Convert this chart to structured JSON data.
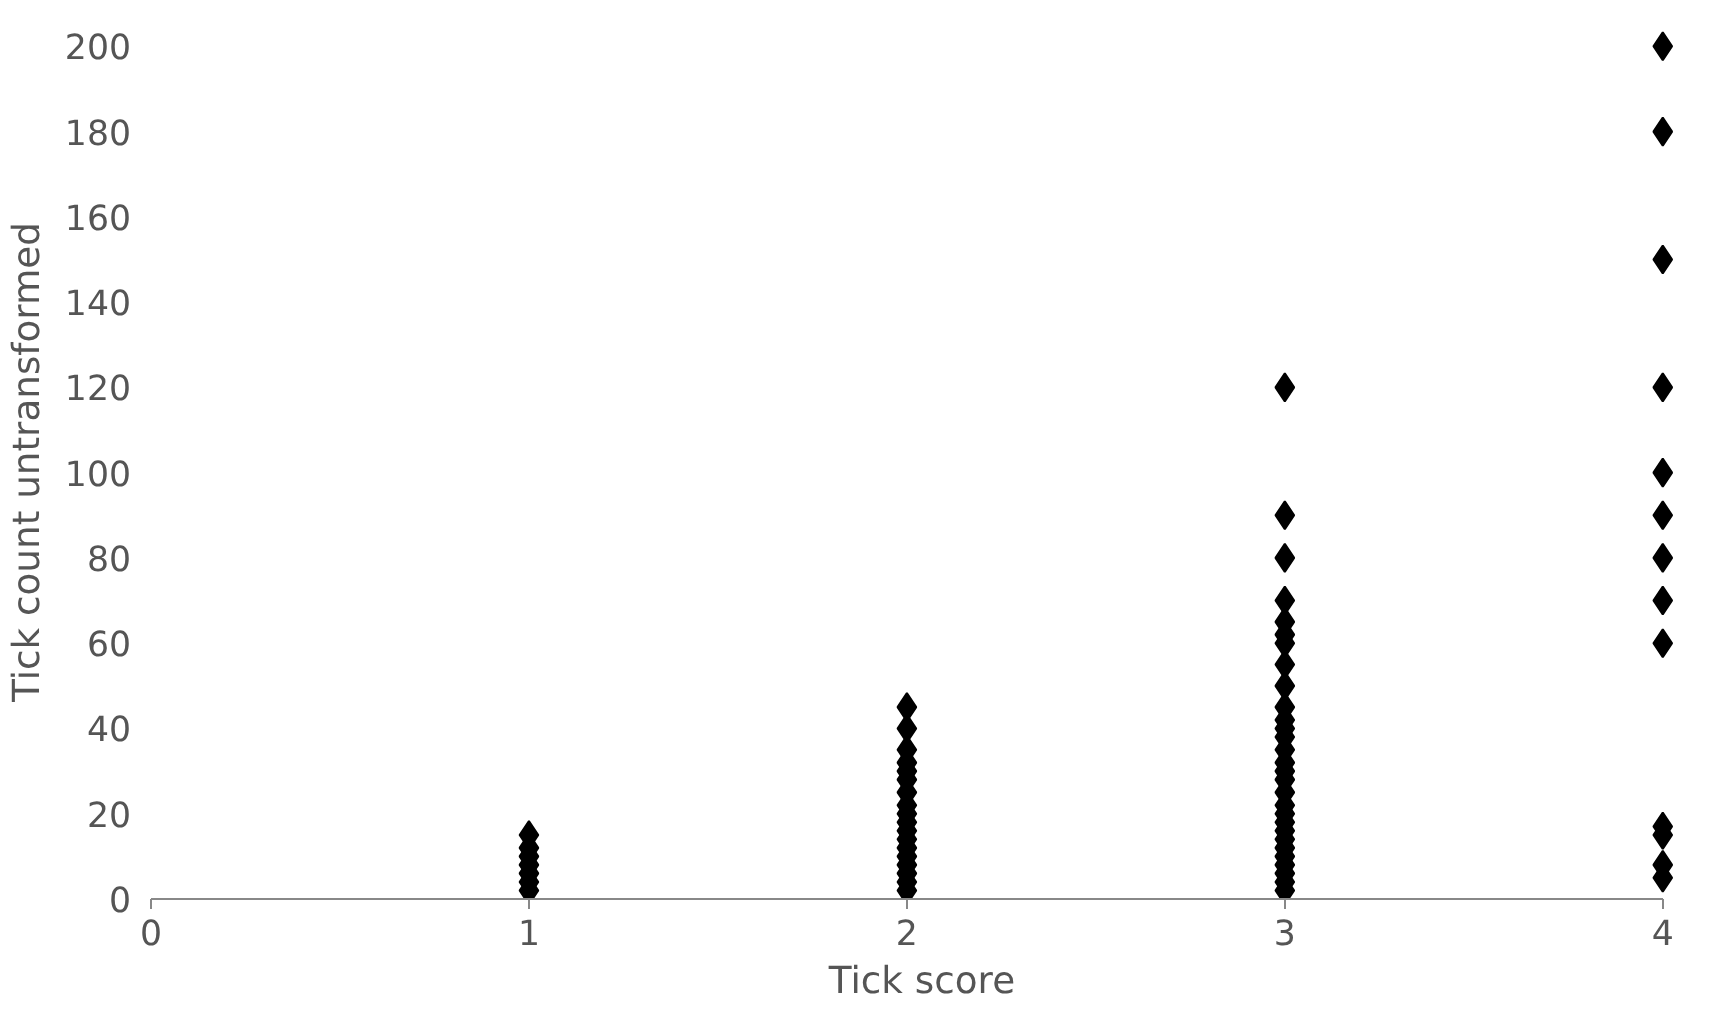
{
  "chart_data": {
    "type": "scatter",
    "xlabel": "Tick score",
    "ylabel": "Tick count untransformed",
    "xlim": [
      0,
      4
    ],
    "xticks": [
      0,
      1,
      2,
      3,
      4
    ],
    "ylim": [
      0,
      200
    ],
    "yticks": [
      0,
      20,
      40,
      60,
      80,
      100,
      120,
      140,
      160,
      180,
      200
    ],
    "grid": false,
    "marker": "diamond",
    "series": [
      {
        "color": "#000000",
        "x": [
          1,
          1,
          1,
          1,
          1,
          1,
          1,
          2,
          2,
          2,
          2,
          2,
          2,
          2,
          2,
          2,
          2,
          2,
          2,
          2,
          2,
          2,
          2,
          2,
          2,
          3,
          3,
          3,
          3,
          3,
          3,
          3,
          3,
          3,
          3,
          3,
          3,
          3,
          3,
          3,
          3,
          3,
          3,
          3,
          3,
          3,
          3,
          3,
          3,
          3,
          3,
          3,
          3,
          3,
          4,
          4,
          4,
          4,
          4,
          4,
          4,
          4,
          4,
          4,
          4,
          4,
          4
        ],
        "values": [
          2,
          4,
          6,
          8,
          10,
          12,
          15,
          2,
          4,
          6,
          8,
          10,
          12,
          14,
          16,
          18,
          20,
          22,
          25,
          28,
          30,
          32,
          35,
          40,
          45,
          2,
          4,
          6,
          8,
          10,
          12,
          14,
          16,
          18,
          20,
          22,
          25,
          28,
          30,
          32,
          35,
          38,
          40,
          42,
          45,
          50,
          55,
          60,
          62,
          65,
          70,
          80,
          90,
          120,
          5,
          8,
          15,
          17,
          60,
          70,
          80,
          90,
          100,
          120,
          150,
          180,
          200
        ]
      }
    ]
  }
}
